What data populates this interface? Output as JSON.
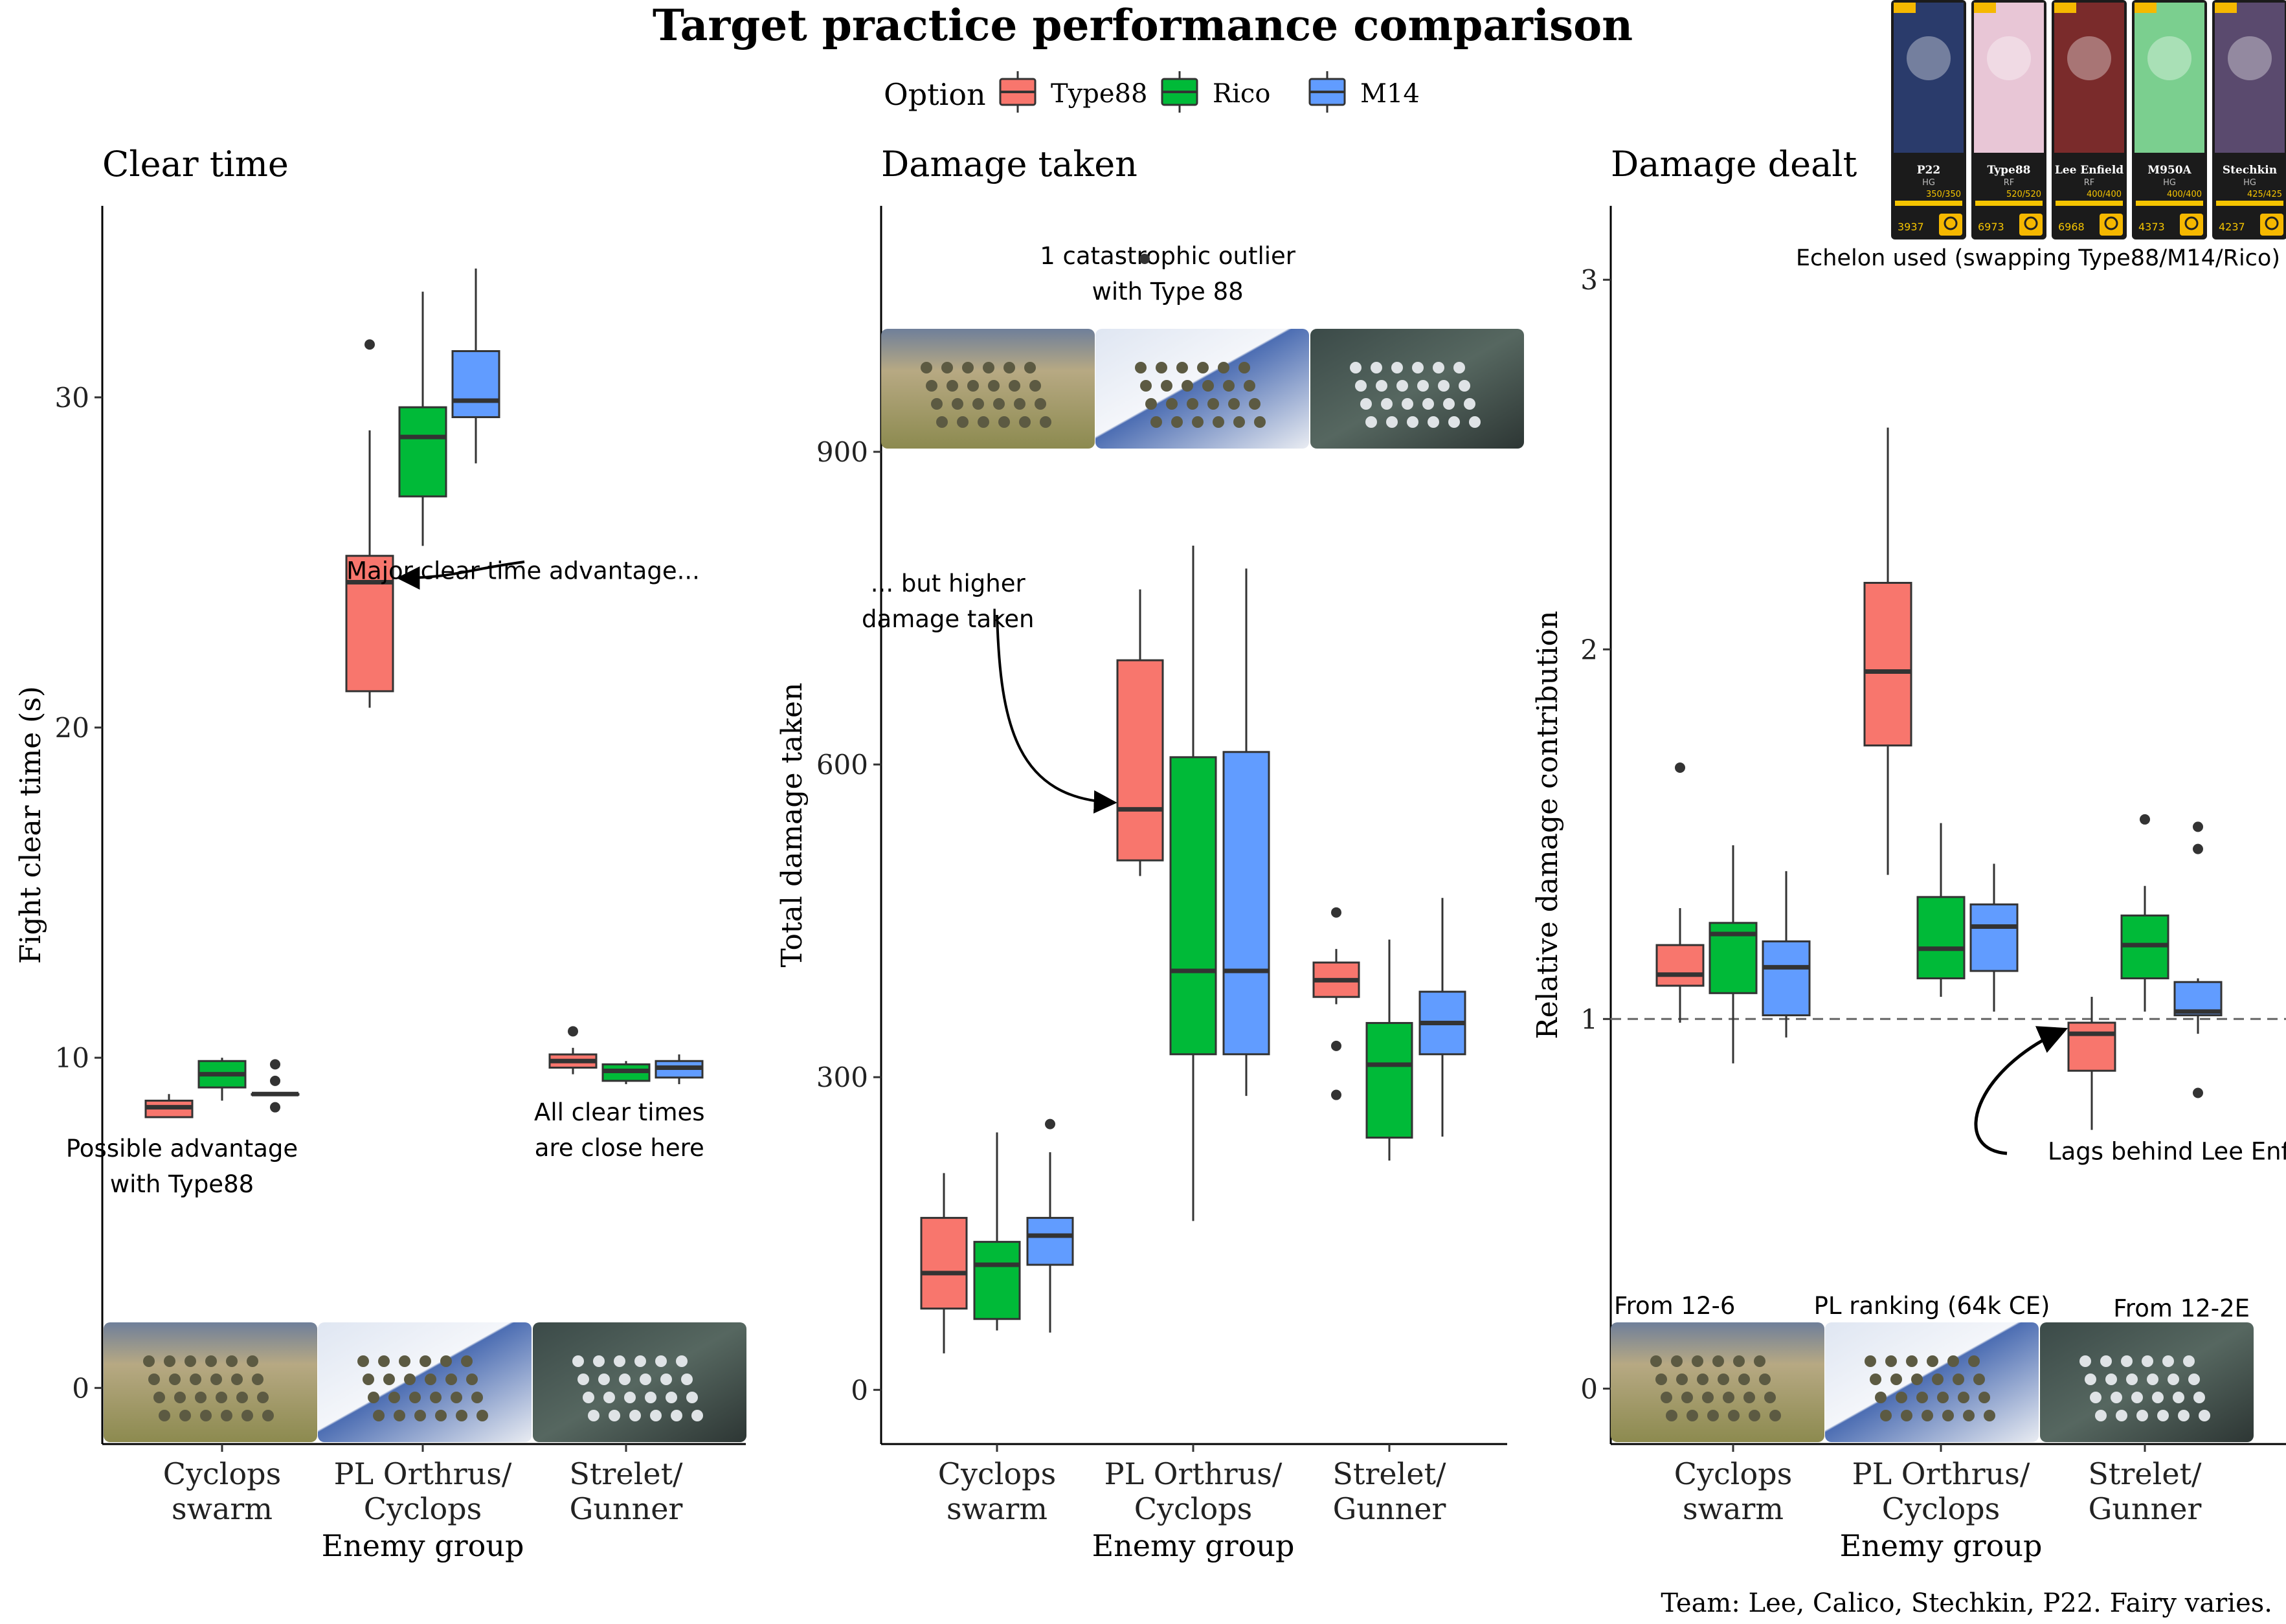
{
  "title": "Target practice performance comparison",
  "legend": {
    "title": "Option",
    "items": [
      {
        "label": "Type88",
        "color": "#F8766D"
      },
      {
        "label": "Rico",
        "color": "#00BA38"
      },
      {
        "label": "M14",
        "color": "#619CFF"
      }
    ]
  },
  "echelon": {
    "caption": "Echelon used (swapping Type88/M14/Rico)",
    "cards": [
      {
        "name": "P22",
        "class": "HG",
        "hp": "350/350",
        "power": "3937"
      },
      {
        "name": "Type88",
        "class": "RF",
        "hp": "520/520",
        "power": "6973"
      },
      {
        "name": "Lee Enfield",
        "class": "RF",
        "hp": "400/400",
        "power": "6968"
      },
      {
        "name": "M950A",
        "class": "HG",
        "hp": "400/400",
        "power": "4373"
      },
      {
        "name": "Stechkin",
        "class": "HG",
        "hp": "425/425",
        "power": "4237"
      }
    ]
  },
  "xaxis_title": "Enemy group",
  "categories": [
    "Cyclops\nswarm",
    "PL Orthrus/\nCyclops",
    "Strelet/\nGunner"
  ],
  "footer": "Team: Lee, Calico, Stechkin, P22. Fairy varies.",
  "chart_data": [
    {
      "type": "box",
      "title": "Clear time",
      "ylabel": "Fight clear time (s)",
      "ylim": [
        -1.7,
        35.8
      ],
      "yticks": [
        0,
        10,
        20,
        30
      ],
      "categories": [
        "Cyclops swarm",
        "PL Orthrus/ Cyclops",
        "Strelet/ Gunner"
      ],
      "series": [
        {
          "name": "Type88",
          "boxes": [
            {
              "min": 8.2,
              "q1": 8.2,
              "median": 8.5,
              "q3": 8.7,
              "max": 8.9,
              "outliers": []
            },
            {
              "min": 20.6,
              "q1": 21.1,
              "median": 24.4,
              "q3": 25.2,
              "max": 29.0,
              "outliers": [
                31.6
              ]
            },
            {
              "min": 9.5,
              "q1": 9.7,
              "median": 9.9,
              "q3": 10.1,
              "max": 10.3,
              "outliers": [
                10.8
              ]
            }
          ]
        },
        {
          "name": "Rico",
          "boxes": [
            {
              "min": 8.7,
              "q1": 9.1,
              "median": 9.5,
              "q3": 9.9,
              "max": 10.0,
              "outliers": []
            },
            {
              "min": 25.5,
              "q1": 27.0,
              "median": 28.8,
              "q3": 29.7,
              "max": 33.2,
              "outliers": []
            },
            {
              "min": 9.2,
              "q1": 9.3,
              "median": 9.6,
              "q3": 9.8,
              "max": 9.9,
              "outliers": []
            }
          ]
        },
        {
          "name": "M14",
          "boxes": [
            {
              "min": 8.9,
              "q1": 8.9,
              "median": 8.9,
              "q3": 8.9,
              "max": 8.9,
              "outliers": [
                9.8,
                9.3,
                8.5
              ]
            },
            {
              "min": 28.0,
              "q1": 29.4,
              "median": 29.9,
              "q3": 31.4,
              "max": 33.9,
              "outliers": []
            },
            {
              "min": 9.2,
              "q1": 9.4,
              "median": 9.7,
              "q3": 9.9,
              "max": 10.1,
              "outliers": []
            }
          ]
        }
      ],
      "annotations": [
        {
          "text": "Major clear time advantage...",
          "x": 2.5,
          "y": 24.5
        },
        {
          "text": "Possible advantage\nwith Type88",
          "x": 0.8,
          "y": 7.0
        },
        {
          "text": "All clear times\nare close here",
          "x": 2.98,
          "y": 8.1
        }
      ],
      "inset_y": -1.7,
      "inset_labels": []
    },
    {
      "type": "box",
      "title": "Damage taken",
      "ylabel": "Total damage taken",
      "ylim": [
        -52,
        1136
      ],
      "yticks": [
        0,
        300,
        600,
        900
      ],
      "categories": [
        "Cyclops swarm",
        "PL Orthrus/ Cyclops",
        "Strelet/ Gunner"
      ],
      "series": [
        {
          "name": "Type88",
          "boxes": [
            {
              "min": 35,
              "q1": 78,
              "median": 112,
              "q3": 165,
              "max": 208,
              "outliers": []
            },
            {
              "min": 493,
              "q1": 508,
              "median": 557,
              "q3": 700,
              "max": 768,
              "outliers": []
            },
            {
              "min": 370,
              "q1": 377,
              "median": 393,
              "q3": 410,
              "max": 423,
              "outliers": [
                458,
                330,
                283
              ]
            }
          ]
        },
        {
          "name": "Rico",
          "boxes": [
            {
              "min": 57,
              "q1": 68,
              "median": 120,
              "q3": 142,
              "max": 247,
              "outliers": []
            },
            {
              "min": 162,
              "q1": 322,
              "median": 402,
              "q3": 607,
              "max": 810,
              "outliers": []
            },
            {
              "min": 220,
              "q1": 242,
              "median": 312,
              "q3": 352,
              "max": 432,
              "outliers": []
            }
          ]
        },
        {
          "name": "M14",
          "boxes": [
            {
              "min": 55,
              "q1": 120,
              "median": 148,
              "q3": 165,
              "max": 228,
              "outliers": [
                255
              ]
            },
            {
              "min": 282,
              "q1": 322,
              "median": 402,
              "q3": 612,
              "max": 788,
              "outliers": []
            },
            {
              "min": 243,
              "q1": 322,
              "median": 352,
              "q3": 382,
              "max": 472,
              "outliers": []
            }
          ]
        }
      ],
      "annotations": [
        {
          "text": "1 catastrophic outlier\nwith Type 88",
          "x": 1.87,
          "y": 1080
        },
        {
          "text": "... but higher\ndamage taken",
          "x": 0.75,
          "y": 766
        }
      ],
      "inset_y": 900,
      "inset_labels": []
    },
    {
      "type": "box",
      "title": "Damage dealt",
      "ylabel": "Relative damage contribution",
      "ylim": [
        -0.15,
        3.2
      ],
      "yticks": [
        0,
        1,
        2,
        3
      ],
      "reference_line": 1,
      "categories": [
        "Cyclops swarm",
        "PL Orthrus/ Cyclops",
        "Strelet/ Gunner"
      ],
      "series": [
        {
          "name": "Type88",
          "boxes": [
            {
              "min": 0.99,
              "q1": 1.09,
              "median": 1.12,
              "q3": 1.2,
              "max": 1.3,
              "outliers": [
                1.68
              ]
            },
            {
              "min": 1.39,
              "q1": 1.74,
              "median": 1.94,
              "q3": 2.18,
              "max": 2.6,
              "outliers": []
            },
            {
              "min": 0.7,
              "q1": 0.86,
              "median": 0.96,
              "q3": 0.99,
              "max": 1.06,
              "outliers": []
            }
          ]
        },
        {
          "name": "Rico",
          "boxes": [
            {
              "min": 0.88,
              "q1": 1.07,
              "median": 1.23,
              "q3": 1.26,
              "max": 1.47,
              "outliers": []
            },
            {
              "min": 1.06,
              "q1": 1.11,
              "median": 1.19,
              "q3": 1.33,
              "max": 1.53,
              "outliers": []
            },
            {
              "min": 1.02,
              "q1": 1.11,
              "median": 1.2,
              "q3": 1.28,
              "max": 1.36,
              "outliers": [
                1.54
              ]
            }
          ]
        },
        {
          "name": "M14",
          "boxes": [
            {
              "min": 0.95,
              "q1": 1.01,
              "median": 1.14,
              "q3": 1.21,
              "max": 1.4,
              "outliers": []
            },
            {
              "min": 1.02,
              "q1": 1.13,
              "median": 1.25,
              "q3": 1.31,
              "max": 1.42,
              "outliers": []
            },
            {
              "min": 0.96,
              "q1": 1.01,
              "median": 1.02,
              "q3": 1.1,
              "max": 1.11,
              "outliers": [
                1.52,
                1.46,
                0.8
              ]
            }
          ]
        }
      ],
      "annotations": [
        {
          "text": "Lags behind Lee Enfield",
          "x": 3.2,
          "y": 0.62
        }
      ],
      "inset_y": -0.15,
      "inset_labels": [
        "From 12-6",
        "PL ranking (64k CE)",
        "From 12-2E"
      ]
    }
  ]
}
